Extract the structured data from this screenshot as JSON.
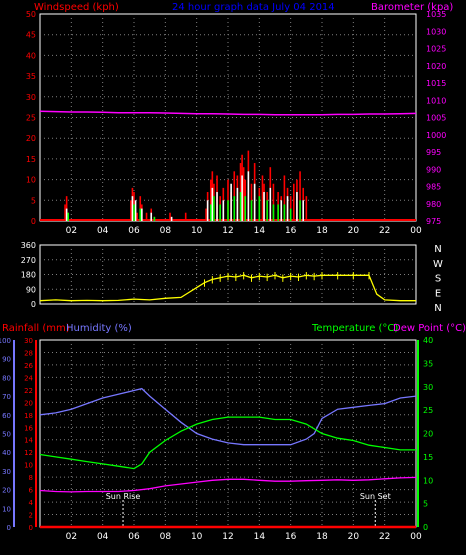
{
  "header": {
    "left_label": "Windspeed (kph)",
    "title": "24 hour graph data  July 04 2014",
    "right_label": "Barometer (kpa)"
  },
  "colors": {
    "background": "#000000",
    "grid": "#7f7f7f",
    "wind": "#ff0000",
    "gust": "#ffffff",
    "wind_avg": "#00ff00",
    "barometer": "#ff00ff",
    "direction": "#ffff00",
    "rain": "#ff0000",
    "humidity": "#7777ff",
    "temperature": "#00ff00",
    "dewpoint": "#ff00ff",
    "sun_event": "#ffffff",
    "title": "#0000ff"
  },
  "x_axis": {
    "ticks": [
      "02",
      "04",
      "06",
      "08",
      "10",
      "12",
      "14",
      "16",
      "18",
      "20",
      "22",
      "00"
    ],
    "range_hours": [
      0,
      24
    ]
  },
  "chart_data": [
    {
      "type": "line",
      "name": "wind-barometer",
      "title": "",
      "ylabel_left": "Windspeed (kph)",
      "ylabel_right": "Barometer (kpa)",
      "ylim_left": [
        0,
        50
      ],
      "ylim_right": [
        975,
        1035
      ],
      "yticks_left": [
        "0",
        "5",
        "10",
        "15",
        "20",
        "25",
        "30",
        "35",
        "40",
        "45",
        "50"
      ],
      "yticks_right": [
        "975",
        "980",
        "985",
        "990",
        "995",
        "1000",
        "1005",
        "1010",
        "1015",
        "1020",
        "1025",
        "1030",
        "1035"
      ],
      "grid": true,
      "series": [
        {
          "key": "barometer",
          "axis": "right",
          "x": [
            0,
            1,
            2,
            3,
            4,
            5,
            6,
            7,
            8,
            9,
            10,
            11,
            12,
            13,
            14,
            15,
            16,
            17,
            18,
            19,
            20,
            21,
            22,
            23,
            24
          ],
          "values": [
            1006.8,
            1006.7,
            1006.6,
            1006.6,
            1006.5,
            1006.4,
            1006.4,
            1006.4,
            1006.3,
            1006.2,
            1006.1,
            1006.1,
            1006.0,
            1005.9,
            1005.9,
            1005.8,
            1005.8,
            1005.8,
            1005.8,
            1005.9,
            1005.9,
            1006.0,
            1006.0,
            1006.1,
            1006.2
          ]
        },
        {
          "key": "wind",
          "axis": "left",
          "type": "spikes",
          "x": [
            1.6,
            1.7,
            1.8,
            5.8,
            5.9,
            6.0,
            6.1,
            6.2,
            6.4,
            6.5,
            6.8,
            7.1,
            7.3,
            8.3,
            8.4,
            9.3,
            10.6,
            10.7,
            10.9,
            11.0,
            11.1,
            11.3,
            11.5,
            11.7,
            12.0,
            12.2,
            12.4,
            12.6,
            12.8,
            12.9,
            13.0,
            13.1,
            13.3,
            13.5,
            13.7,
            14.0,
            14.2,
            14.3,
            14.5,
            14.7,
            14.9,
            15.2,
            15.4,
            15.6,
            15.8,
            16.0,
            16.2,
            16.4,
            16.6,
            16.8,
            17.0
          ],
          "values": [
            4,
            6,
            2,
            5,
            8,
            7,
            3,
            2,
            6,
            4,
            2,
            3,
            1,
            2,
            1,
            2,
            3,
            7,
            10,
            12,
            9,
            11,
            6,
            8,
            10,
            7,
            12,
            11,
            14,
            16,
            13,
            10,
            17,
            9,
            14,
            8,
            11,
            9,
            7,
            13,
            9,
            7,
            6,
            11,
            8,
            6,
            9,
            10,
            12,
            8,
            6
          ]
        },
        {
          "key": "gust",
          "axis": "left",
          "type": "spikes",
          "x": [
            1.7,
            5.9,
            6.1,
            6.5,
            7.1,
            8.4,
            10.7,
            11.0,
            11.3,
            11.7,
            12.2,
            12.6,
            12.9,
            13.3,
            13.7,
            14.3,
            14.7,
            15.4,
            15.8,
            16.4,
            16.8
          ],
          "values": [
            3,
            6,
            5,
            3,
            2,
            1,
            5,
            8,
            7,
            5,
            9,
            8,
            11,
            12,
            9,
            7,
            8,
            5,
            6,
            7,
            5
          ]
        },
        {
          "key": "wind_avg",
          "axis": "left",
          "type": "spikes",
          "x": [
            1.8,
            6.0,
            6.4,
            7.3,
            10.9,
            11.1,
            11.5,
            12.0,
            12.4,
            12.8,
            13.1,
            13.5,
            14.0,
            14.5,
            14.9,
            15.2,
            15.6,
            16.0,
            16.6
          ],
          "values": [
            2,
            4,
            3,
            1,
            4,
            6,
            4,
            5,
            6,
            7,
            6,
            5,
            6,
            5,
            4,
            4,
            4,
            3,
            5
          ]
        }
      ]
    },
    {
      "type": "line",
      "name": "wind-direction",
      "title": "",
      "ylim": [
        0,
        360
      ],
      "yticks_left": [
        "0",
        "90",
        "180",
        "270",
        "360"
      ],
      "yticks_right": [
        "N",
        "E",
        "S",
        "W",
        "N"
      ],
      "grid": true,
      "series": [
        {
          "key": "direction",
          "x": [
            0,
            1,
            2,
            3,
            4,
            5,
            6,
            7,
            8,
            9,
            9.5,
            10,
            10.5,
            11,
            11.5,
            12,
            12.5,
            13,
            13.5,
            14,
            14.5,
            15,
            15.5,
            16,
            16.5,
            17,
            17.5,
            18,
            19,
            20,
            21,
            21.5,
            22,
            23,
            24
          ],
          "values": [
            20,
            25,
            20,
            22,
            20,
            22,
            30,
            25,
            35,
            40,
            70,
            100,
            130,
            150,
            160,
            170,
            165,
            175,
            160,
            170,
            165,
            175,
            160,
            170,
            165,
            175,
            170,
            175,
            175,
            175,
            175,
            60,
            25,
            20,
            20
          ]
        }
      ]
    },
    {
      "type": "line",
      "name": "rain-humidity-temperature",
      "title": "",
      "ylabel_rain": "Rainfall (mm)",
      "ylabel_humidity": "Humidity (%)",
      "ylabel_temperature": "Temperature (°C)",
      "ylabel_dewpoint": "Dew Point (°C)",
      "ylim_humidity": [
        0,
        100
      ],
      "ylim_rain": [
        0,
        30
      ],
      "ylim_temperature": [
        0,
        40
      ],
      "yticks_humidity": [
        "0",
        "10",
        "20",
        "30",
        "40",
        "50",
        "60",
        "70",
        "80",
        "90",
        "100"
      ],
      "yticks_rain": [
        "0",
        "2",
        "4",
        "6",
        "8",
        "10",
        "12",
        "14",
        "16",
        "18",
        "20",
        "22",
        "24",
        "26",
        "28",
        "30"
      ],
      "yticks_temperature": [
        "0",
        "5",
        "10",
        "15",
        "20",
        "25",
        "30",
        "35",
        "40"
      ],
      "grid": true,
      "annotations": [
        {
          "label": "Sun Rise",
          "x": 5.3
        },
        {
          "label": "Sun Set",
          "x": 21.4
        }
      ],
      "series": [
        {
          "key": "rain",
          "axis": "rain",
          "x": [
            0,
            24
          ],
          "values": [
            0,
            0
          ]
        },
        {
          "key": "humidity",
          "axis": "humidity",
          "x": [
            0,
            1,
            2,
            3,
            4,
            5,
            6,
            6.5,
            7,
            8,
            9,
            10,
            11,
            12,
            13,
            14,
            15,
            16,
            17,
            17.5,
            18,
            19,
            20,
            21,
            22,
            23,
            24
          ],
          "values": [
            60,
            61,
            63,
            66,
            69,
            71,
            73,
            74,
            70,
            63,
            56,
            50,
            47,
            45,
            44,
            44,
            44,
            44,
            47,
            50,
            58,
            63,
            64,
            65,
            66,
            69,
            70
          ]
        },
        {
          "key": "temperature",
          "axis": "temperature",
          "x": [
            0,
            1,
            2,
            3,
            4,
            5,
            6,
            6.5,
            7,
            8,
            9,
            10,
            11,
            12,
            13,
            14,
            15,
            16,
            17,
            18,
            19,
            20,
            21,
            22,
            23,
            24
          ],
          "values": [
            15.5,
            15,
            14.5,
            14,
            13.5,
            13,
            12.5,
            13.5,
            16,
            18.5,
            20.5,
            22,
            23,
            23.5,
            23.5,
            23.5,
            23,
            23,
            22,
            20,
            19,
            18.5,
            17.5,
            17,
            16.5,
            16.5
          ]
        },
        {
          "key": "dewpoint",
          "axis": "temperature",
          "x": [
            0,
            1,
            2,
            3,
            4,
            5,
            6,
            7,
            8,
            9,
            10,
            11,
            12,
            13,
            14,
            15,
            16,
            17,
            18,
            19,
            20,
            21,
            22,
            23,
            24
          ],
          "values": [
            7.8,
            7.6,
            7.5,
            7.6,
            7.6,
            7.6,
            7.8,
            8.2,
            8.8,
            9.2,
            9.6,
            10.0,
            10.2,
            10.2,
            10.0,
            9.8,
            9.8,
            9.9,
            10.0,
            10.1,
            10.0,
            10.1,
            10.3,
            10.5,
            10.6
          ]
        }
      ]
    }
  ],
  "bottom_panel_header": {
    "rain_label": "Rainfall (mm)",
    "humidity_label": "Humidity (%)",
    "temperature_label": "Temperature (°C)",
    "dewpoint_label": "Dew Point (°C)"
  }
}
